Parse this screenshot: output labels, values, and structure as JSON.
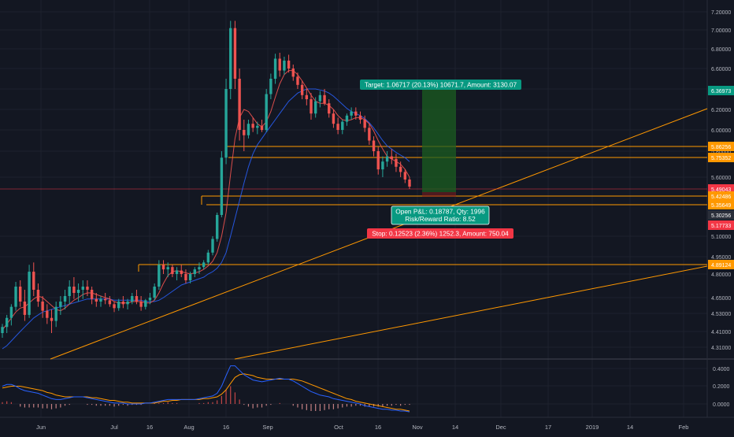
{
  "chart_data": [
    {
      "type": "candlestick",
      "y_ticks": [
        "7.20000",
        "7.00000",
        "6.80000",
        "6.60000",
        "6.40000",
        "6.20000",
        "6.00000",
        "5.80000",
        "5.60000",
        "5.10000",
        "4.95000",
        "4.80000",
        "4.65000",
        "4.53000",
        "4.41000",
        "4.31000"
      ],
      "x_ticks": [
        "Jun",
        "Jul",
        "16",
        "Aug",
        "16",
        "Sep",
        "Oct",
        "16",
        "Nov",
        "14",
        "Dec",
        "17",
        "2019",
        "14",
        "Feb"
      ],
      "price_tags": [
        {
          "value": "6.36973",
          "color": "#089981",
          "text_color": "#ffffff"
        },
        {
          "value": "5.86256",
          "color": "#ff9800",
          "text_color": "#ffffff"
        },
        {
          "value": "5.75352",
          "color": "#ff9800",
          "text_color": "#ffffff"
        },
        {
          "value": "5.49043",
          "color": "#f23645",
          "text_color": "#ffffff"
        },
        {
          "value": "5.42486",
          "color": "#ff9800",
          "text_color": "#ffffff"
        },
        {
          "value": "5.35649",
          "color": "#ff9800",
          "text_color": "#ffffff"
        },
        {
          "value": "5.30256",
          "color": "#2a2e39",
          "text_color": "#ffffff"
        },
        {
          "value": "5.17733",
          "color": "#f23645",
          "text_color": "#ffffff"
        },
        {
          "value": "4.89124",
          "color": "#ff9800",
          "text_color": "#ffffff"
        }
      ],
      "position_tool": {
        "target_label": "Target: 1.06717 (20.13%) 10671.7, Amount: 3130.07",
        "open_label_line1": "Open P&L: 0.18787, Qty: 1996",
        "open_label_line2": "Risk/Reward Ratio: 8.52",
        "stop_label": "Stop: 0.12523 (2.36%) 1252.3, Amount: 750.04"
      },
      "colors": {
        "up": "#26a69a",
        "down": "#ef5350",
        "ma_fast": "#ef5350",
        "ma_slow": "#2962ff",
        "levels": "#ff9800",
        "profit_zone": "#1b5e20",
        "target_bg": "#089981",
        "stop_bg": "#f23645"
      },
      "candles": [
        [
          4.4,
          4.46,
          4.37,
          4.44
        ],
        [
          4.44,
          4.52,
          4.4,
          4.5
        ],
        [
          4.5,
          4.6,
          4.45,
          4.58
        ],
        [
          4.58,
          4.75,
          4.55,
          4.72
        ],
        [
          4.72,
          4.76,
          4.58,
          4.62
        ],
        [
          4.62,
          4.7,
          4.48,
          4.52
        ],
        [
          4.52,
          4.88,
          4.5,
          4.82
        ],
        [
          4.82,
          4.9,
          4.66,
          4.7
        ],
        [
          4.7,
          4.74,
          4.58,
          4.62
        ],
        [
          4.62,
          4.66,
          4.5,
          4.55
        ],
        [
          4.55,
          4.6,
          4.46,
          4.5
        ],
        [
          4.5,
          4.56,
          4.4,
          4.48
        ],
        [
          4.48,
          4.62,
          4.44,
          4.58
        ],
        [
          4.58,
          4.66,
          4.52,
          4.62
        ],
        [
          4.62,
          4.7,
          4.56,
          4.66
        ],
        [
          4.66,
          4.76,
          4.6,
          4.72
        ],
        [
          4.72,
          4.78,
          4.64,
          4.68
        ],
        [
          4.68,
          4.74,
          4.62,
          4.7
        ],
        [
          4.7,
          4.76,
          4.64,
          4.72
        ],
        [
          4.72,
          4.76,
          4.66,
          4.7
        ],
        [
          4.7,
          4.72,
          4.6,
          4.64
        ],
        [
          4.64,
          4.68,
          4.58,
          4.62
        ],
        [
          4.62,
          4.66,
          4.58,
          4.64
        ],
        [
          4.64,
          4.68,
          4.6,
          4.63
        ],
        [
          4.63,
          4.66,
          4.58,
          4.6
        ],
        [
          4.6,
          4.62,
          4.54,
          4.57
        ],
        [
          4.57,
          4.64,
          4.55,
          4.62
        ],
        [
          4.62,
          4.66,
          4.57,
          4.6
        ],
        [
          4.6,
          4.64,
          4.56,
          4.62
        ],
        [
          4.62,
          4.68,
          4.6,
          4.66
        ],
        [
          4.66,
          4.7,
          4.6,
          4.62
        ],
        [
          4.62,
          4.66,
          4.55,
          4.58
        ],
        [
          4.58,
          4.64,
          4.56,
          4.63
        ],
        [
          4.63,
          4.68,
          4.6,
          4.65
        ],
        [
          4.65,
          4.74,
          4.63,
          4.72
        ],
        [
          4.72,
          4.92,
          4.7,
          4.88
        ],
        [
          4.88,
          4.92,
          4.8,
          4.84
        ],
        [
          4.84,
          4.9,
          4.78,
          4.86
        ],
        [
          4.86,
          4.88,
          4.78,
          4.8
        ],
        [
          4.8,
          4.86,
          4.76,
          4.83
        ],
        [
          4.83,
          4.88,
          4.78,
          4.8
        ],
        [
          4.8,
          4.84,
          4.74,
          4.76
        ],
        [
          4.76,
          4.82,
          4.74,
          4.8
        ],
        [
          4.8,
          4.86,
          4.78,
          4.84
        ],
        [
          4.84,
          4.9,
          4.8,
          4.86
        ],
        [
          4.86,
          4.92,
          4.84,
          4.9
        ],
        [
          4.9,
          5.0,
          4.88,
          4.98
        ],
        [
          4.98,
          5.1,
          4.96,
          5.08
        ],
        [
          5.08,
          5.3,
          5.06,
          5.28
        ],
        [
          5.28,
          5.8,
          5.26,
          5.75
        ],
        [
          5.75,
          6.5,
          5.7,
          6.4
        ],
        [
          6.4,
          7.1,
          6.3,
          7.02
        ],
        [
          7.02,
          7.1,
          6.4,
          6.5
        ],
        [
          6.5,
          6.6,
          5.9,
          6.0
        ],
        [
          6.0,
          6.1,
          5.8,
          5.95
        ],
        [
          5.95,
          6.1,
          5.92,
          6.06
        ],
        [
          6.06,
          6.12,
          5.98,
          6.02
        ],
        [
          6.02,
          6.08,
          5.96,
          6.04
        ],
        [
          6.04,
          6.1,
          5.98,
          6.0
        ],
        [
          6.0,
          6.4,
          5.98,
          6.35
        ],
        [
          6.35,
          6.55,
          6.3,
          6.5
        ],
        [
          6.5,
          6.75,
          6.45,
          6.7
        ],
        [
          6.7,
          6.76,
          6.52,
          6.58
        ],
        [
          6.58,
          6.72,
          6.54,
          6.68
        ],
        [
          6.68,
          6.74,
          6.56,
          6.6
        ],
        [
          6.6,
          6.64,
          6.48,
          6.52
        ],
        [
          6.52,
          6.56,
          6.4,
          6.44
        ],
        [
          6.44,
          6.48,
          6.3,
          6.34
        ],
        [
          6.34,
          6.4,
          6.24,
          6.3
        ],
        [
          6.3,
          6.36,
          6.1,
          6.16
        ],
        [
          6.16,
          6.32,
          6.12,
          6.28
        ],
        [
          6.28,
          6.38,
          6.22,
          6.34
        ],
        [
          6.34,
          6.4,
          6.24,
          6.26
        ],
        [
          6.26,
          6.3,
          6.12,
          6.16
        ],
        [
          6.16,
          6.2,
          6.02,
          6.06
        ],
        [
          6.06,
          6.12,
          5.96,
          6.0
        ],
        [
          6.0,
          6.1,
          5.96,
          6.08
        ],
        [
          6.08,
          6.16,
          6.04,
          6.14
        ],
        [
          6.14,
          6.22,
          6.1,
          6.18
        ],
        [
          6.18,
          6.22,
          6.1,
          6.14
        ],
        [
          6.14,
          6.18,
          6.06,
          6.1
        ],
        [
          6.1,
          6.14,
          5.98,
          6.02
        ],
        [
          6.02,
          6.06,
          5.86,
          5.9
        ],
        [
          5.9,
          5.94,
          5.76,
          5.8
        ],
        [
          5.8,
          5.84,
          5.62,
          5.66
        ],
        [
          5.66,
          5.76,
          5.6,
          5.72
        ],
        [
          5.72,
          5.8,
          5.68,
          5.76
        ],
        [
          5.76,
          5.82,
          5.7,
          5.74
        ],
        [
          5.74,
          5.78,
          5.64,
          5.68
        ],
        [
          5.68,
          5.72,
          5.6,
          5.64
        ],
        [
          5.64,
          5.66,
          5.55,
          5.58
        ],
        [
          5.58,
          5.6,
          5.5,
          5.52
        ]
      ],
      "ma_fast": [
        4.42,
        4.46,
        4.5,
        4.54,
        4.57,
        4.58,
        4.61,
        4.64,
        4.66,
        4.65,
        4.62,
        4.59,
        4.56,
        4.55,
        4.57,
        4.6,
        4.63,
        4.65,
        4.67,
        4.68,
        4.68,
        4.67,
        4.66,
        4.65,
        4.64,
        4.62,
        4.61,
        4.61,
        4.61,
        4.62,
        4.62,
        4.62,
        4.61,
        4.61,
        4.63,
        4.68,
        4.74,
        4.79,
        4.82,
        4.83,
        4.82,
        4.81,
        4.8,
        4.81,
        4.82,
        4.84,
        4.87,
        4.91,
        4.98,
        5.1,
        5.3,
        5.62,
        5.92,
        6.12,
        6.2,
        6.18,
        6.12,
        6.06,
        6.03,
        6.08,
        6.18,
        6.32,
        6.45,
        6.54,
        6.58,
        6.58,
        6.54,
        6.48,
        6.41,
        6.34,
        6.28,
        6.26,
        6.26,
        6.24,
        6.2,
        6.14,
        6.1,
        6.09,
        6.1,
        6.12,
        6.12,
        6.1,
        6.06,
        5.99,
        5.9,
        5.82,
        5.76,
        5.74,
        5.72,
        5.7,
        5.66,
        5.6
      ],
      "ma_slow": [
        4.3,
        4.32,
        4.35,
        4.38,
        4.41,
        4.44,
        4.47,
        4.5,
        4.52,
        4.54,
        4.55,
        4.56,
        4.57,
        4.58,
        4.59,
        4.6,
        4.61,
        4.62,
        4.63,
        4.64,
        4.64,
        4.64,
        4.64,
        4.64,
        4.64,
        4.63,
        4.63,
        4.63,
        4.63,
        4.63,
        4.63,
        4.63,
        4.62,
        4.62,
        4.62,
        4.63,
        4.65,
        4.67,
        4.69,
        4.71,
        4.73,
        4.74,
        4.75,
        4.76,
        4.77,
        4.78,
        4.8,
        4.82,
        4.85,
        4.9,
        4.98,
        5.1,
        5.25,
        5.4,
        5.55,
        5.68,
        5.78,
        5.86,
        5.92,
        5.98,
        6.04,
        6.1,
        6.16,
        6.22,
        6.28,
        6.32,
        6.36,
        6.38,
        6.4,
        6.4,
        6.4,
        6.39,
        6.38,
        6.36,
        6.33,
        6.29,
        6.25,
        6.21,
        6.18,
        6.16,
        6.14,
        6.11,
        6.07,
        6.02,
        5.96,
        5.9,
        5.85,
        5.82,
        5.79,
        5.77,
        5.75,
        5.72
      ],
      "macd_ticks": [
        "0.4000",
        "0.2000",
        "0.0000"
      ],
      "macd_line": [
        0.2,
        0.22,
        0.22,
        0.2,
        0.17,
        0.15,
        0.14,
        0.13,
        0.12,
        0.1,
        0.08,
        0.06,
        0.05,
        0.05,
        0.06,
        0.07,
        0.08,
        0.08,
        0.08,
        0.07,
        0.06,
        0.05,
        0.04,
        0.03,
        0.02,
        0.01,
        0.01,
        0.01,
        0.0,
        0.0,
        0.0,
        0.0,
        0.01,
        0.01,
        0.02,
        0.03,
        0.04,
        0.05,
        0.05,
        0.05,
        0.05,
        0.05,
        0.05,
        0.05,
        0.06,
        0.07,
        0.08,
        0.09,
        0.12,
        0.2,
        0.32,
        0.43,
        0.43,
        0.38,
        0.33,
        0.3,
        0.27,
        0.26,
        0.25,
        0.26,
        0.27,
        0.28,
        0.29,
        0.28,
        0.28,
        0.26,
        0.23,
        0.2,
        0.17,
        0.14,
        0.12,
        0.1,
        0.09,
        0.08,
        0.06,
        0.05,
        0.04,
        0.03,
        0.02,
        0.01,
        0.0,
        -0.02,
        -0.03,
        -0.04,
        -0.05,
        -0.06,
        -0.06,
        -0.07,
        -0.07,
        -0.08,
        -0.08,
        -0.09
      ],
      "macd_signal": [
        0.18,
        0.19,
        0.2,
        0.2,
        0.2,
        0.19,
        0.18,
        0.17,
        0.16,
        0.15,
        0.13,
        0.12,
        0.1,
        0.09,
        0.08,
        0.08,
        0.08,
        0.08,
        0.08,
        0.08,
        0.07,
        0.07,
        0.06,
        0.05,
        0.04,
        0.04,
        0.03,
        0.02,
        0.02,
        0.01,
        0.01,
        0.01,
        0.01,
        0.01,
        0.01,
        0.02,
        0.03,
        0.03,
        0.04,
        0.04,
        0.05,
        0.05,
        0.05,
        0.05,
        0.05,
        0.06,
        0.06,
        0.07,
        0.08,
        0.11,
        0.16,
        0.23,
        0.3,
        0.33,
        0.34,
        0.33,
        0.32,
        0.3,
        0.29,
        0.28,
        0.28,
        0.28,
        0.28,
        0.28,
        0.28,
        0.28,
        0.27,
        0.26,
        0.24,
        0.22,
        0.2,
        0.18,
        0.16,
        0.14,
        0.12,
        0.1,
        0.08,
        0.06,
        0.05,
        0.03,
        0.02,
        0.01,
        0.0,
        -0.01,
        -0.02,
        -0.03,
        -0.04,
        -0.05,
        -0.06,
        -0.06,
        -0.07,
        -0.08
      ]
    }
  ]
}
